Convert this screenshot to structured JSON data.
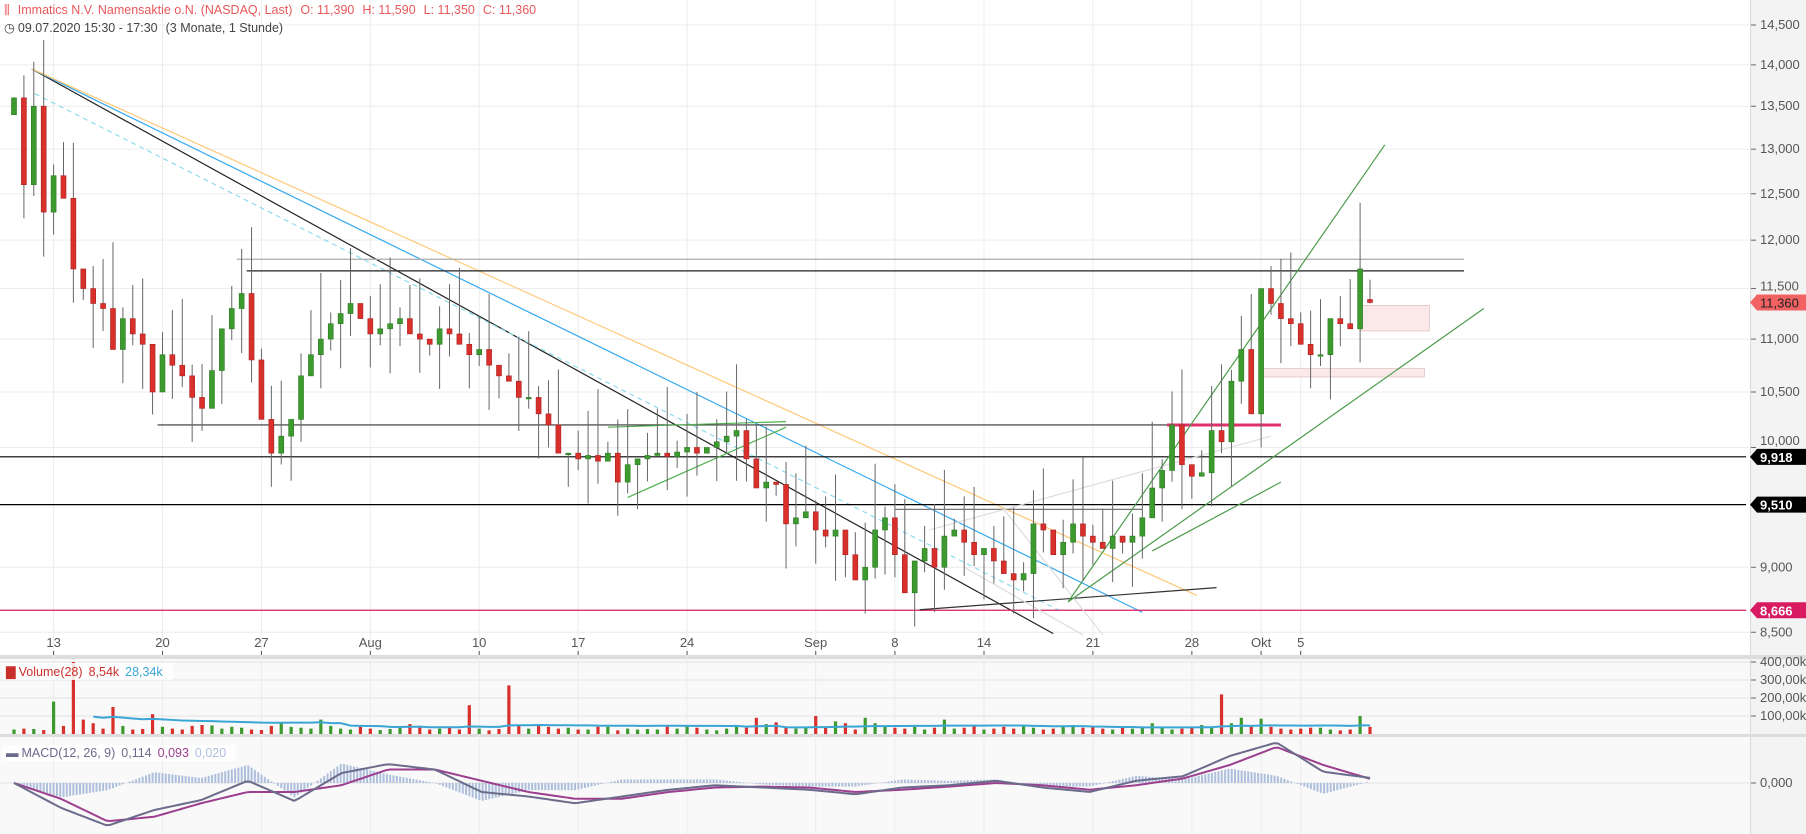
{
  "header": {
    "title": "Immatics N.V. Namensaktie  o.N. (NASDAQ, Last)",
    "open": "O: 11,390",
    "high": "H: 11,590",
    "low": "L: 11,350",
    "close": "C: 11,360",
    "datetime": "09.07.2020 15:30 - 17:30",
    "range": "(3 Monate, 1 Stunde)",
    "icon": "candlestick-settings-icon",
    "clock_icon": "clock-icon"
  },
  "volume_legend": {
    "label": "Volume(28)",
    "volume": "8,54k",
    "average": "28,34k"
  },
  "macd_legend": {
    "label": "MACD(12, 26, 9)",
    "macd": "0,114",
    "signal": "0,093",
    "histogram": "0,020"
  },
  "colors": {
    "up": "#3c9a2f",
    "down": "#d9302c",
    "last_price": "#f26262",
    "support": "#000000",
    "low_line": "#d81b60",
    "volume_avg": "#3aa6d6",
    "macd": "#6b6b8c",
    "signal": "#9c3f8e",
    "histogram": "#aebfdc"
  },
  "chart_data": {
    "type": "candlestick",
    "scale": "log",
    "grid": true,
    "price_ticks": [
      "14,500",
      "14,000",
      "13,500",
      "13,000",
      "12,500",
      "12,000",
      "11,500",
      "11,000",
      "10,500",
      "10,000",
      "9,000",
      "8,500"
    ],
    "price_tick_values": [
      14500,
      14000,
      13500,
      13000,
      12500,
      12000,
      11500,
      11000,
      10500,
      10000,
      9000,
      8500
    ],
    "x_ticks": [
      "13",
      "20",
      "27",
      "Aug",
      "10",
      "17",
      "24",
      "Sep",
      "8",
      "14",
      "21",
      "28",
      "Okt",
      "5"
    ],
    "x_tick_bar_index": [
      4,
      15,
      25,
      36,
      47,
      57,
      68,
      81,
      89,
      98,
      109,
      119,
      126,
      130
    ],
    "first_open": 13400,
    "last": {
      "open": 11390,
      "high": 11590,
      "low": 11350,
      "close": 11360
    },
    "closes": [
      13600,
      12600,
      13500,
      12300,
      12700,
      12450,
      11700,
      11500,
      11350,
      11300,
      10900,
      11200,
      11050,
      10950,
      10500,
      10850,
      10750,
      10650,
      10450,
      10350,
      10700,
      11100,
      11300,
      11450,
      10800,
      10250,
      9950,
      10100,
      10250,
      10650,
      10850,
      11000,
      11150,
      11250,
      11350,
      11200,
      11050,
      11100,
      11150,
      11200,
      11050,
      11000,
      10950,
      11100,
      11050,
      10950,
      10850,
      10900,
      10750,
      10650,
      10600,
      10450,
      10450,
      10300,
      10200,
      9950,
      9950,
      9900,
      9930,
      9880,
      9950,
      9700,
      9850,
      9900,
      9930,
      9950,
      9920,
      9960,
      10000,
      9950,
      10000,
      10050,
      10100,
      10150,
      9900,
      9650,
      9700,
      9680,
      9350,
      9400,
      9450,
      9300,
      9250,
      9300,
      9100,
      8900,
      9000,
      9300,
      9400,
      9100,
      8800,
      9050,
      9150,
      9000,
      9250,
      9300,
      9200,
      9100,
      9150,
      9050,
      8950,
      8900,
      8950,
      9350,
      9300,
      9100,
      9200,
      9350,
      9250,
      9200,
      9150,
      9250,
      9200,
      9250,
      9400,
      9650,
      9800,
      10200,
      9850,
      9750,
      9780,
      10150,
      10050,
      10600,
      10900,
      10300,
      11500,
      11350,
      11200,
      11150,
      10950,
      10850,
      10850,
      11200,
      11150,
      11100,
      11700,
      11360
    ],
    "volumes_k": [
      25,
      30,
      28,
      22,
      180,
      45,
      400,
      80,
      60,
      30,
      150,
      45,
      25,
      28,
      110,
      40,
      30,
      25,
      45,
      50,
      48,
      30,
      40,
      35,
      25,
      22,
      45,
      60,
      40,
      35,
      30,
      80,
      45,
      30,
      25,
      40,
      30,
      22,
      28,
      35,
      55,
      40,
      25,
      30,
      35,
      25,
      160,
      30,
      20,
      28,
      270,
      45,
      30,
      55,
      40,
      30,
      35,
      25,
      25,
      40,
      40,
      20,
      30,
      25,
      28,
      25,
      45,
      30,
      40,
      35,
      25,
      20,
      30,
      40,
      35,
      90,
      55,
      65,
      40,
      30,
      35,
      100,
      40,
      70,
      60,
      25,
      90,
      60,
      40,
      35,
      30,
      40,
      25,
      35,
      80,
      30,
      35,
      45,
      25,
      30,
      40,
      30,
      45,
      35,
      25,
      30,
      40,
      50,
      35,
      40,
      30,
      25,
      35,
      30,
      40,
      60,
      35,
      25,
      30,
      40,
      50,
      35,
      220,
      60,
      90,
      40,
      85,
      40,
      30,
      25,
      30,
      35,
      35,
      25,
      20,
      25,
      100,
      40
    ],
    "volume_ticks": [
      "400,00k",
      "300,00k",
      "200,00k",
      "100,00k"
    ],
    "volume_tick_values": [
      400,
      300,
      200,
      100
    ],
    "volume_average_period": 28,
    "macd": [
      0,
      -0.55,
      -0.95,
      -0.6,
      -0.38,
      0.05,
      -0.4,
      0.22,
      0.42,
      0.3,
      -0.2,
      -0.3,
      -0.45,
      -0.3,
      -0.15,
      -0.05,
      -0.1,
      -0.15,
      -0.25,
      -0.1,
      -0.05,
      0.05,
      -0.1,
      -0.2,
      0.05,
      0.15,
      0.6,
      0.9,
      0.25,
      0.114
    ],
    "signal": [
      0,
      -0.35,
      -0.85,
      -0.75,
      -0.45,
      -0.2,
      -0.2,
      -0.05,
      0.3,
      0.3,
      0.05,
      -0.2,
      -0.35,
      -0.35,
      -0.2,
      -0.1,
      -0.08,
      -0.1,
      -0.2,
      -0.15,
      -0.08,
      0.0,
      -0.05,
      -0.15,
      -0.05,
      0.1,
      0.4,
      0.8,
      0.4,
      0.093
    ],
    "macd_ticks": [
      "0,000"
    ],
    "price_labels": [
      {
        "text": "11,360",
        "value": 11360,
        "kind": "last"
      },
      {
        "text": "9,918",
        "value": 9918,
        "kind": "support"
      },
      {
        "text": "9,510",
        "value": 9510,
        "kind": "support"
      },
      {
        "text": "8,666",
        "value": 8666,
        "kind": "low"
      }
    ],
    "drawings": [
      {
        "name": "downtrend-black",
        "color": "#222",
        "from": [
          1.8,
          13950
        ],
        "to": [
          105,
          8490
        ]
      },
      {
        "name": "downtrend-blue",
        "color": "#36a9f0",
        "from": [
          1.8,
          13950
        ],
        "to": [
          114,
          8650
        ]
      },
      {
        "name": "downtrend-orange",
        "color": "#ffc878",
        "from": [
          1.8,
          13950
        ],
        "to": [
          119.5,
          8780
        ]
      },
      {
        "name": "downtrend-cyan-dashed",
        "color": "#8fdcec",
        "dash": true,
        "from": [
          2.1,
          13650
        ],
        "to": [
          106,
          8650
        ]
      },
      {
        "name": "resistance-grey",
        "color": "#aaa",
        "from": [
          22.5,
          11800
        ],
        "to": [
          146.5,
          11800
        ]
      },
      {
        "name": "resistance-black",
        "color": "#222",
        "from": [
          23.5,
          11680
        ],
        "to": [
          146.5,
          11680
        ]
      },
      {
        "name": "support-10200",
        "color": "#333",
        "from": [
          14.5,
          10200
        ],
        "to": [
          125,
          10200
        ]
      },
      {
        "name": "support-9918",
        "color": "#000",
        "from": [
          -2,
          9918
        ],
        "to": [
          175,
          9918
        ]
      },
      {
        "name": "support-9510",
        "color": "#000",
        "from": [
          -2,
          9510
        ],
        "to": [
          175,
          9510
        ]
      },
      {
        "name": "low-8666",
        "color": "#d81b60",
        "from": [
          -2,
          8666
        ],
        "to": [
          175,
          8666
        ]
      },
      {
        "name": "resistance-pink",
        "color": "#e0306a",
        "width": 3,
        "from": [
          116.5,
          10200
        ],
        "to": [
          128,
          10200
        ]
      },
      {
        "name": "triangle-top-green",
        "color": "#4cb04c",
        "from": [
          60,
          10180
        ],
        "to": [
          78,
          10230
        ]
      },
      {
        "name": "triangle-bottom-green",
        "color": "#4cb04c",
        "from": [
          62,
          9570
        ],
        "to": [
          78,
          10180
        ]
      },
      {
        "name": "range-top-grey",
        "color": "#777",
        "from": [
          89,
          9470
        ],
        "to": [
          114,
          9470
        ]
      },
      {
        "name": "base-black",
        "color": "#333",
        "from": [
          91.5,
          8670
        ],
        "to": [
          121.5,
          8840
        ]
      },
      {
        "name": "rising-light",
        "color": "#ddd",
        "from": [
          92.5,
          9300
        ],
        "to": [
          127,
          10100
        ]
      },
      {
        "name": "fan-light-1",
        "color": "#ddd",
        "from": [
          100,
          9470
        ],
        "to": [
          110,
          8480
        ]
      },
      {
        "name": "fan-light-2",
        "color": "#ddd",
        "from": [
          96,
          9000
        ],
        "to": [
          108,
          8480
        ]
      },
      {
        "name": "green-fan-steep",
        "color": "#4c9c4c",
        "from": [
          106.5,
          8730
        ],
        "to": [
          138.5,
          13050
        ]
      },
      {
        "name": "green-fan-mid",
        "color": "#4c9c4c",
        "from": [
          106.5,
          8730
        ],
        "to": [
          148.5,
          11300
        ]
      },
      {
        "name": "green-fan-low",
        "color": "#4c9c4c",
        "from": [
          115,
          9130
        ],
        "to": [
          128,
          9700
        ]
      }
    ],
    "zones": [
      {
        "name": "zone-upper",
        "color": "#fbe9e9",
        "from": [
          136,
          11330
        ],
        "to": [
          143,
          11080
        ]
      },
      {
        "name": "zone-lower",
        "color": "#fbe9e9",
        "from": [
          126,
          10720
        ],
        "to": [
          142.5,
          10640
        ]
      }
    ]
  }
}
